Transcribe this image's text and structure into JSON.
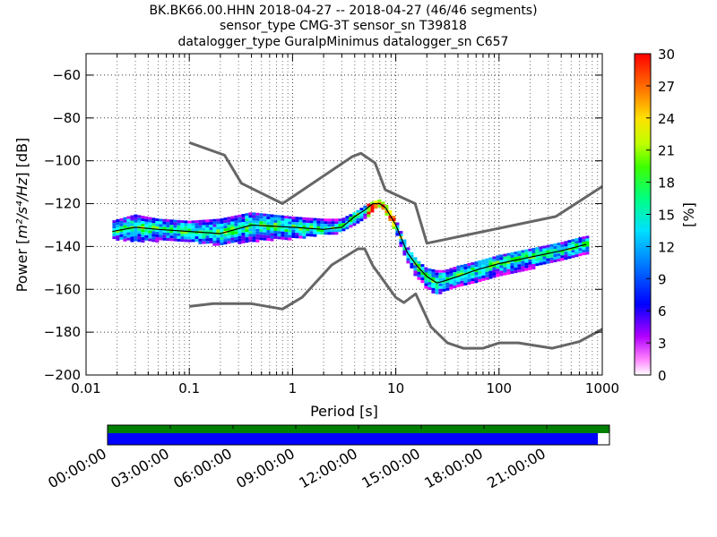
{
  "title_lines": [
    "BK.BK66.00.HHN   2018-04-27 -- 2018-04-27  (46/46 segments)",
    "sensor_type CMG-3T sensor_sn T39818",
    "datalogger_type GuralpMinimus datalogger_sn C657"
  ],
  "xlabel": "Period [s]",
  "ylabel_prefix": "Power [",
  "ylabel_units": "m²/s⁴/Hz",
  "ylabel_suffix": "] [dB]",
  "colorbar_label": "[%]",
  "colors": {
    "noise_model": "#666666",
    "median": "#000000",
    "coverage_green": "#008000",
    "coverage_blue": "#0000ff"
  },
  "chart_data": {
    "type": "heatmap",
    "x_scale": "log",
    "xlim": [
      0.01,
      1000
    ],
    "ylim": [
      -200,
      -50
    ],
    "grid": true,
    "x_ticks": [
      0.01,
      0.1,
      1,
      10,
      100,
      1000
    ],
    "x_tick_labels": [
      "0.01",
      "0.1",
      "1",
      "10",
      "100",
      "1000"
    ],
    "y_ticks": [
      -200,
      -180,
      -160,
      -140,
      -120,
      -100,
      -80,
      -60
    ],
    "y_tick_labels": [
      "−200",
      "−180",
      "−160",
      "−140",
      "−120",
      "−100",
      "−80",
      "−60"
    ],
    "colorbar": {
      "range": [
        0,
        30
      ],
      "ticks": [
        0,
        3,
        6,
        9,
        12,
        15,
        18,
        21,
        24,
        27,
        30
      ],
      "tick_labels": [
        "0",
        "3",
        "6",
        "9",
        "12",
        "15",
        "18",
        "21",
        "24",
        "27",
        "30"
      ]
    },
    "psd_band": {
      "x": [
        0.018,
        0.03,
        0.05,
        0.1,
        0.2,
        0.4,
        1,
        2,
        3,
        4,
        5,
        6,
        7,
        8,
        10,
        13,
        16,
        20,
        25,
        30,
        40,
        60,
        100,
        200,
        400,
        700
      ],
      "lower": [
        -136,
        -137,
        -137,
        -137,
        -139,
        -137,
        -136,
        -134,
        -133,
        -130,
        -127,
        -123,
        -121,
        -124,
        -133,
        -147,
        -154,
        -159,
        -162,
        -160,
        -158,
        -156,
        -153,
        -150,
        -146,
        -143
      ],
      "upper": [
        -128,
        -125,
        -127,
        -128,
        -127,
        -124,
        -126,
        -127,
        -127,
        -124,
        -121,
        -119,
        -118,
        -120,
        -127,
        -140,
        -146,
        -150,
        -151,
        -151,
        -149,
        -147,
        -144,
        -141,
        -138,
        -135
      ]
    },
    "median": {
      "x": [
        0.018,
        0.03,
        0.05,
        0.1,
        0.2,
        0.4,
        1,
        2,
        3,
        4,
        5,
        6,
        7,
        8,
        10,
        13,
        16,
        20,
        25,
        30,
        40,
        60,
        100,
        200,
        400,
        700
      ],
      "y": [
        -133,
        -131,
        -132,
        -133,
        -134,
        -130,
        -131,
        -132,
        -131,
        -126,
        -123,
        -120,
        -120,
        -122,
        -130,
        -143,
        -149,
        -154,
        -157,
        -156,
        -154,
        -151,
        -148,
        -145,
        -142,
        -139
      ]
    },
    "noise_models": [
      {
        "x": [
          0.1,
          0.22,
          0.32,
          0.8,
          3.8,
          4.6,
          6.3,
          7.9,
          15.4,
          20,
          354.8,
          1000
        ],
        "y": [
          -91.5,
          -97.4,
          -110.5,
          -120,
          -98,
          -96.5,
          -101,
          -113.5,
          -120,
          -138.5,
          -126,
          -112
        ]
      },
      {
        "x": [
          0.1,
          0.17,
          0.4,
          0.8,
          1.24,
          2.4,
          4.3,
          5,
          6,
          10,
          12,
          15.6,
          21.9,
          31.6,
          45,
          70,
          101,
          154,
          328,
          600,
          1000
        ],
        "y": [
          -168,
          -166.7,
          -166.7,
          -169.2,
          -163.7,
          -148.6,
          -141.1,
          -141.1,
          -149,
          -163.8,
          -166.2,
          -162.1,
          -177.5,
          -185,
          -187.5,
          -187.5,
          -185,
          -185,
          -187.5,
          -184.4,
          -178.6
        ]
      }
    ]
  },
  "timeline": {
    "tick_labels": [
      "00:00:00",
      "03:00:00",
      "06:00:00",
      "09:00:00",
      "12:00:00",
      "15:00:00",
      "18:00:00",
      "21:00:00"
    ],
    "coverage_fraction": 0.977
  }
}
